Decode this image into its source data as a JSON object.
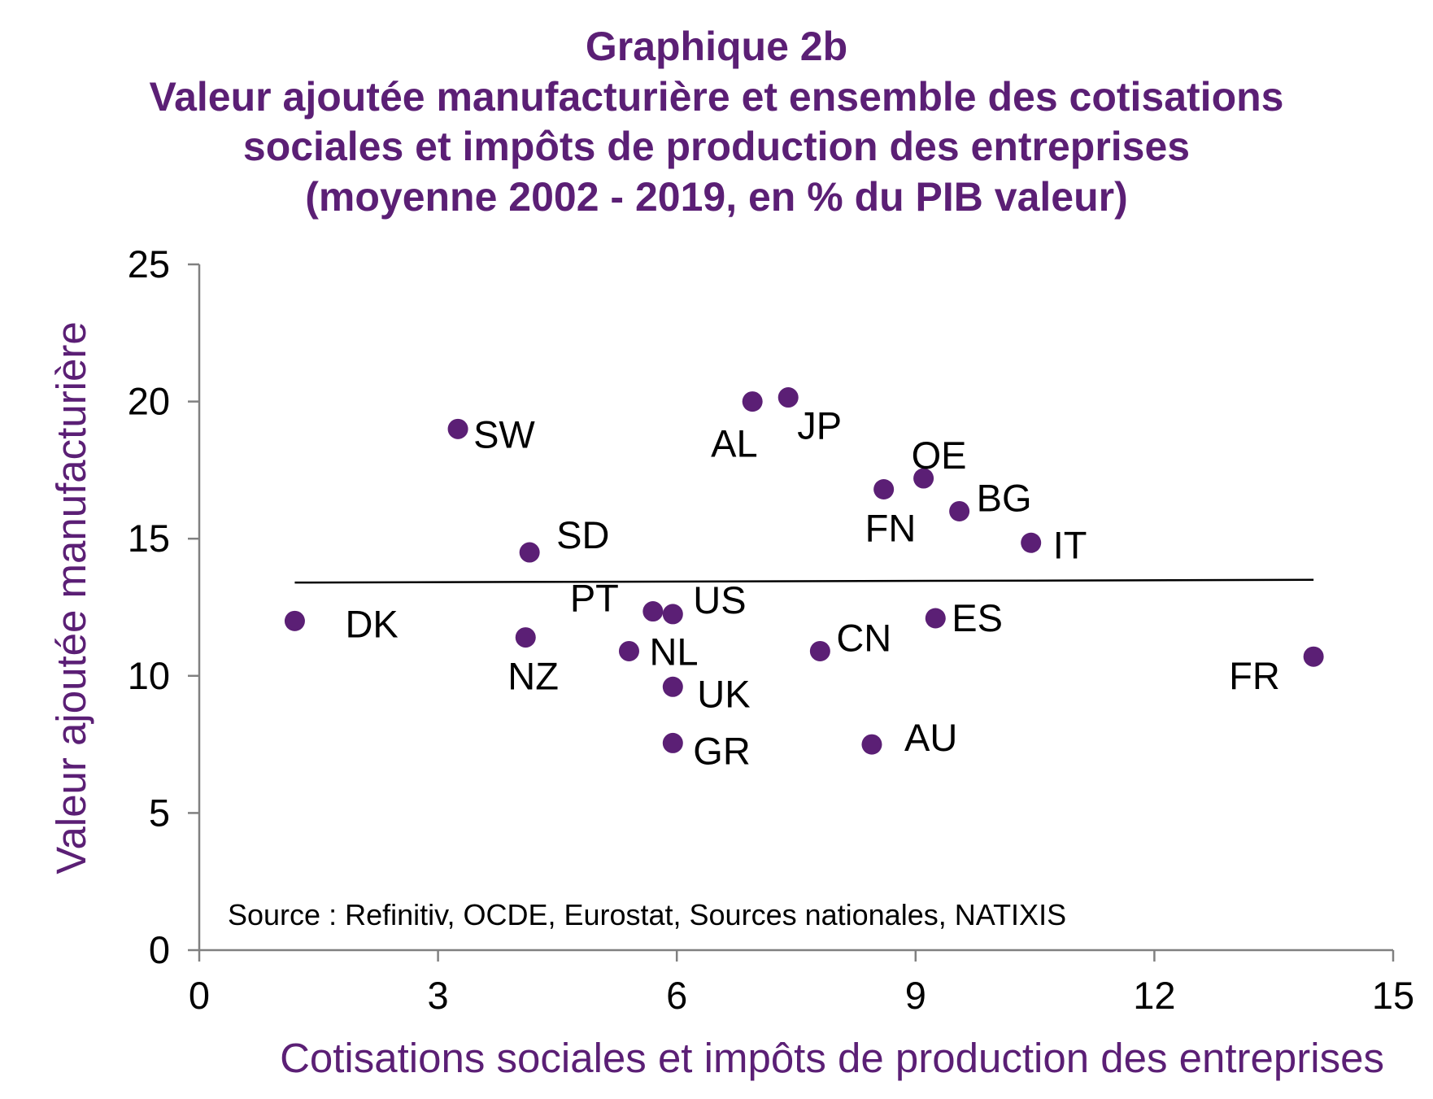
{
  "colors": {
    "title": "#5b1f75",
    "axis_title": "#5b1f75",
    "points": "#5b1f75",
    "axis": "#808080",
    "trendline": "#000000"
  },
  "chart_data": {
    "type": "scatter",
    "title": "Graphique 2b",
    "subtitle": [
      "Valeur ajoutée manufacturière et ensemble des cotisations",
      "sociales et impôts de production des entreprises",
      "(moyenne 2002 - 2019, en % du PIB valeur)"
    ],
    "xlabel": "Cotisations sociales et impôts de production des entreprises",
    "ylabel": "Valeur ajoutée manufacturière",
    "xlim": [
      0,
      15
    ],
    "ylim": [
      0,
      25
    ],
    "xticks": [
      0,
      3,
      6,
      9,
      12,
      15
    ],
    "yticks": [
      0,
      5,
      10,
      15,
      20,
      25
    ],
    "grid": false,
    "legend": "none",
    "source": "Source : Refinitiv, OCDE, Eurostat, Sources nationales, NATIXIS",
    "trendline": {
      "x": [
        1.2,
        14.0
      ],
      "y": [
        13.4,
        13.5
      ]
    },
    "points": [
      {
        "label": "DK",
        "x": 1.2,
        "y": 12.0
      },
      {
        "label": "SW",
        "x": 3.25,
        "y": 19.0
      },
      {
        "label": "NZ",
        "x": 4.1,
        "y": 11.4
      },
      {
        "label": "SD",
        "x": 4.15,
        "y": 14.5
      },
      {
        "label": "NL",
        "x": 5.4,
        "y": 10.9
      },
      {
        "label": "PT",
        "x": 5.7,
        "y": 12.35
      },
      {
        "label": "US",
        "x": 5.95,
        "y": 12.25
      },
      {
        "label": "UK",
        "x": 5.95,
        "y": 9.6
      },
      {
        "label": "GR",
        "x": 5.95,
        "y": 7.55
      },
      {
        "label": "AL",
        "x": 6.95,
        "y": 20.0
      },
      {
        "label": "JP",
        "x": 7.4,
        "y": 20.15
      },
      {
        "label": "CN",
        "x": 7.8,
        "y": 10.9
      },
      {
        "label": "AU",
        "x": 8.45,
        "y": 7.5
      },
      {
        "label": "FN",
        "x": 8.6,
        "y": 16.8
      },
      {
        "label": "OE",
        "x": 9.1,
        "y": 17.2
      },
      {
        "label": "ES",
        "x": 9.25,
        "y": 12.1
      },
      {
        "label": "BG",
        "x": 9.55,
        "y": 16.0
      },
      {
        "label": "IT",
        "x": 10.45,
        "y": 14.85
      },
      {
        "label": "FR",
        "x": 14.0,
        "y": 10.7
      }
    ]
  }
}
